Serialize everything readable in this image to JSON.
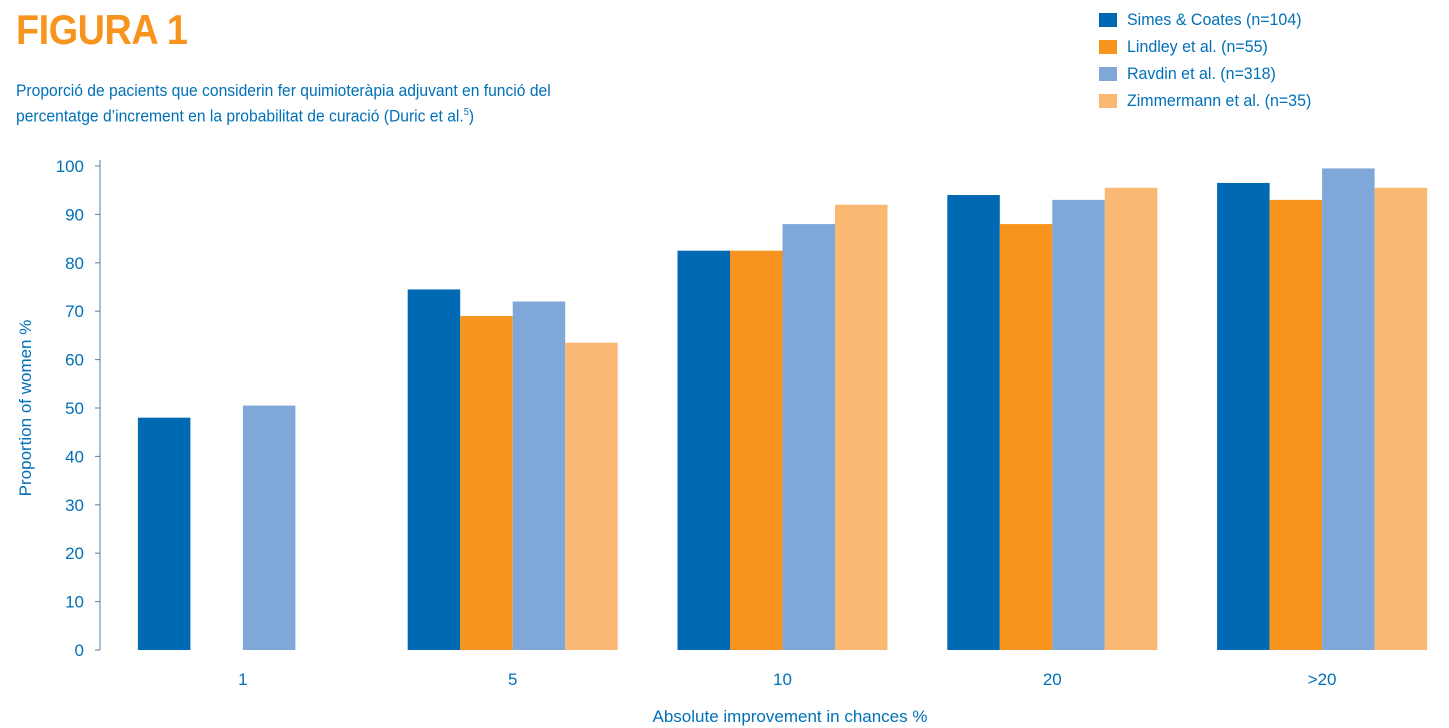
{
  "figure": {
    "title": "FIGURA 1",
    "caption_line1": "Proporció de pacients que considerin fer quimioteràpia adjuvant en funció del",
    "caption_line2": "percentatge d’increment en la probabilitat de curació (Duric et al.",
    "caption_ref": "5",
    "caption_end": ")"
  },
  "colors": {
    "title": "#f7941d",
    "text": "#0070b8",
    "axis": "#5a7fa0"
  },
  "chart_data": {
    "type": "bar",
    "categories": [
      "1",
      "5",
      "10",
      "20",
      ">20"
    ],
    "series": [
      {
        "name": "Simes & Coates (n=104)",
        "color": "#0069b4",
        "values": [
          48,
          74.5,
          82.5,
          94,
          96.5
        ]
      },
      {
        "name": "Lindley et al. (n=55)",
        "color": "#f7941d",
        "values": [
          null,
          69,
          82.5,
          88,
          93
        ]
      },
      {
        "name": "Ravdin et al. (n=318)",
        "color": "#7fa7d8",
        "values": [
          50.5,
          72,
          88,
          93,
          99.5
        ]
      },
      {
        "name": "Zimmermann et al. (n=35)",
        "color": "#fbb873",
        "values": [
          null,
          63.5,
          92,
          95.5,
          95.5
        ]
      }
    ],
    "xlabel": "Absolute improvement in chances %",
    "ylabel": "Proportion of women %",
    "ylim": [
      0,
      100
    ],
    "yticks": [
      0,
      10,
      20,
      30,
      40,
      50,
      60,
      70,
      80,
      90,
      100
    ],
    "grid": false,
    "legend": "top-right"
  }
}
